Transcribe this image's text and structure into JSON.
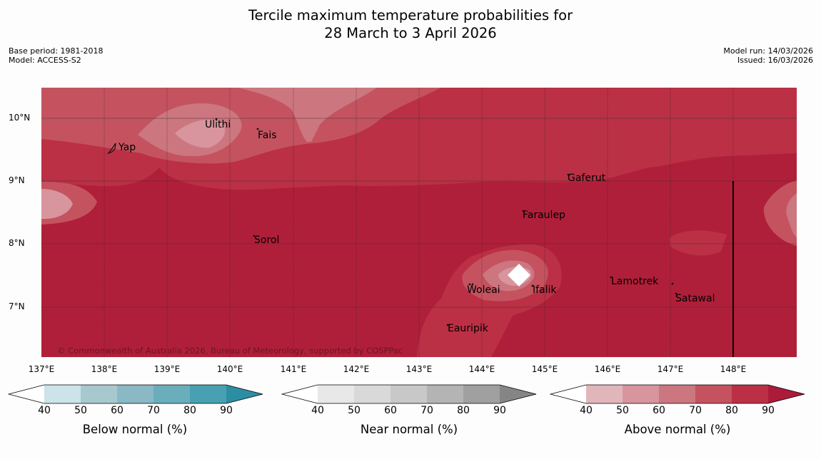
{
  "title_line1": "Tercile maximum temperature probabilities for",
  "title_line2": "28 March to 3 April 2026",
  "meta_left": [
    "Base period: 1981-2018",
    "Model: ACCESS-S2"
  ],
  "meta_right": [
    "Model run: 14/03/2026",
    "Issued: 16/03/2026"
  ],
  "lat_labels": [
    "10°N",
    "9°N",
    "8°N",
    "7°N"
  ],
  "lon_labels": [
    "137°E",
    "138°E",
    "139°E",
    "140°E",
    "141°E",
    "142°E",
    "143°E",
    "144°E",
    "145°E",
    "146°E",
    "147°E",
    "148°E"
  ],
  "places": [
    {
      "name": "Ulithi"
    },
    {
      "name": "Yap"
    },
    {
      "name": "Fais"
    },
    {
      "name": "Gaferut"
    },
    {
      "name": "Faraulep"
    },
    {
      "name": "Sorol"
    },
    {
      "name": "Lamotrek"
    },
    {
      "name": "Woleai"
    },
    {
      "name": "Ifalik"
    },
    {
      "name": "Satawal"
    },
    {
      "name": "Eauripik"
    }
  ],
  "copyright": "© Commonwealth of Australia 2026, Bureau of Meteorology, supported by COSPPac",
  "colorbars": [
    {
      "label": "Below normal (%)",
      "ticks": [
        "40",
        "50",
        "60",
        "70",
        "80",
        "90"
      ],
      "colors": [
        "#ffffff",
        "#cbe3e9",
        "#a8c8cf",
        "#8ab8c4",
        "#6aaebc",
        "#48a0b2",
        "#2c8ea3"
      ]
    },
    {
      "label": "Near normal (%)",
      "ticks": [
        "40",
        "50",
        "60",
        "70",
        "80",
        "90"
      ],
      "colors": [
        "#ffffff",
        "#e8e8e8",
        "#d9d9d9",
        "#c8c8c8",
        "#b4b4b4",
        "#a0a0a0",
        "#858585"
      ]
    },
    {
      "label": "Above normal (%)",
      "ticks": [
        "40",
        "50",
        "60",
        "70",
        "80",
        "90"
      ],
      "colors": [
        "#ffffff",
        "#e1b6bb",
        "#d8959e",
        "#cc7680",
        "#c4535f",
        "#bb3045",
        "#ad1b3a"
      ]
    }
  ]
}
